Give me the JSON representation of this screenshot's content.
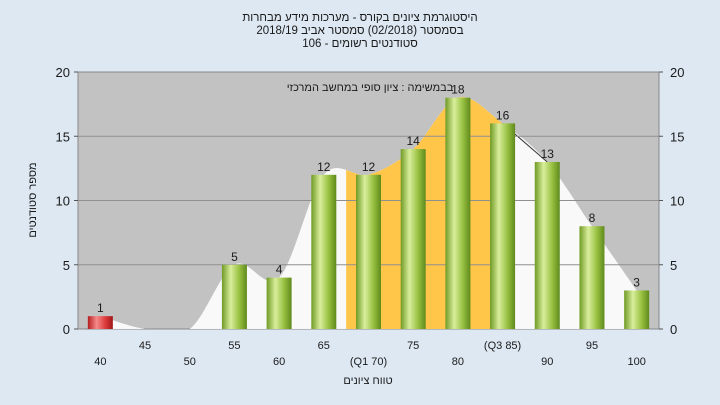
{
  "chart_data": {
    "type": "bar",
    "title_lines": [
      "היסטוגרמת ציונים בקורס - מערכות מידע מבחרות",
      "בסמסטר  (02/2018)  סמסטר אביב 2018/19",
      "סטודנטים רשומים - 106"
    ],
    "annotation": "בבמשימה : ציון סופי במחשב המרכזי",
    "xlabel": "טווח ציונים",
    "ylabel": "מספר סטודנטים",
    "ylim": [
      0,
      20
    ],
    "yticks": [
      0,
      5,
      10,
      15,
      20
    ],
    "categories": [
      "40",
      "45",
      "50",
      "55",
      "60",
      "65",
      "(Q1 70)",
      "75",
      "80",
      "(Q3 85)",
      "90",
      "95",
      "100"
    ],
    "values": [
      1,
      0,
      0,
      5,
      4,
      12,
      12,
      14,
      18,
      16,
      13,
      8,
      3
    ],
    "bar_labels": [
      "1",
      "",
      "",
      "5",
      "4",
      "12",
      "12",
      "14",
      "18",
      "16",
      "13",
      "8",
      "3"
    ],
    "highlight_range": [
      "70",
      "85"
    ],
    "colors": {
      "bar_green": "#9bc24a",
      "bar_red": "#dc3b3b",
      "plot_bg": "#c2c2c2",
      "curve_fill": "#ffffff",
      "iqr_fill": "#ffc64a",
      "page_bg": "#dde8f3"
    },
    "grid": true
  }
}
